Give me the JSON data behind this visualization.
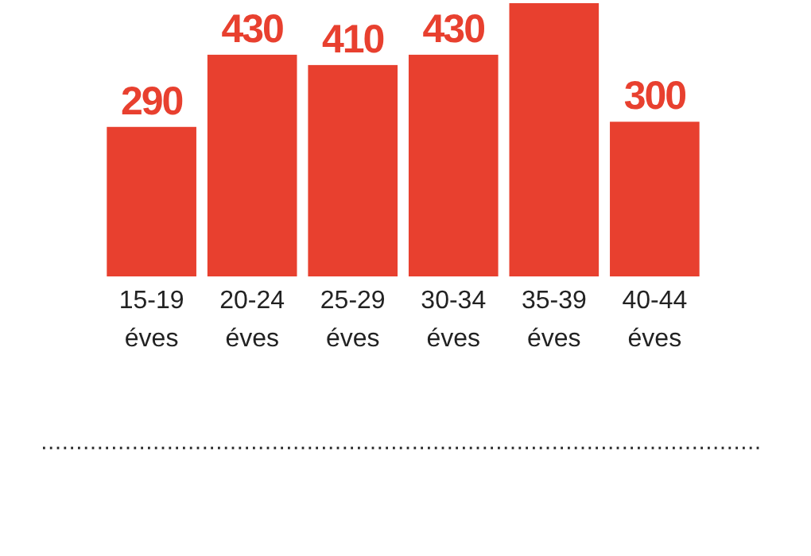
{
  "chart_data": {
    "type": "bar",
    "categories": [
      "15-19 éves",
      "20-24 éves",
      "25-29 éves",
      "30-34 éves",
      "35-39 éves",
      "40-44 éves"
    ],
    "values": [
      290,
      430,
      410,
      430,
      530,
      300
    ],
    "value_labels": [
      "290",
      "430",
      "410",
      "430",
      null,
      "300"
    ],
    "color": "#e8402f"
  }
}
